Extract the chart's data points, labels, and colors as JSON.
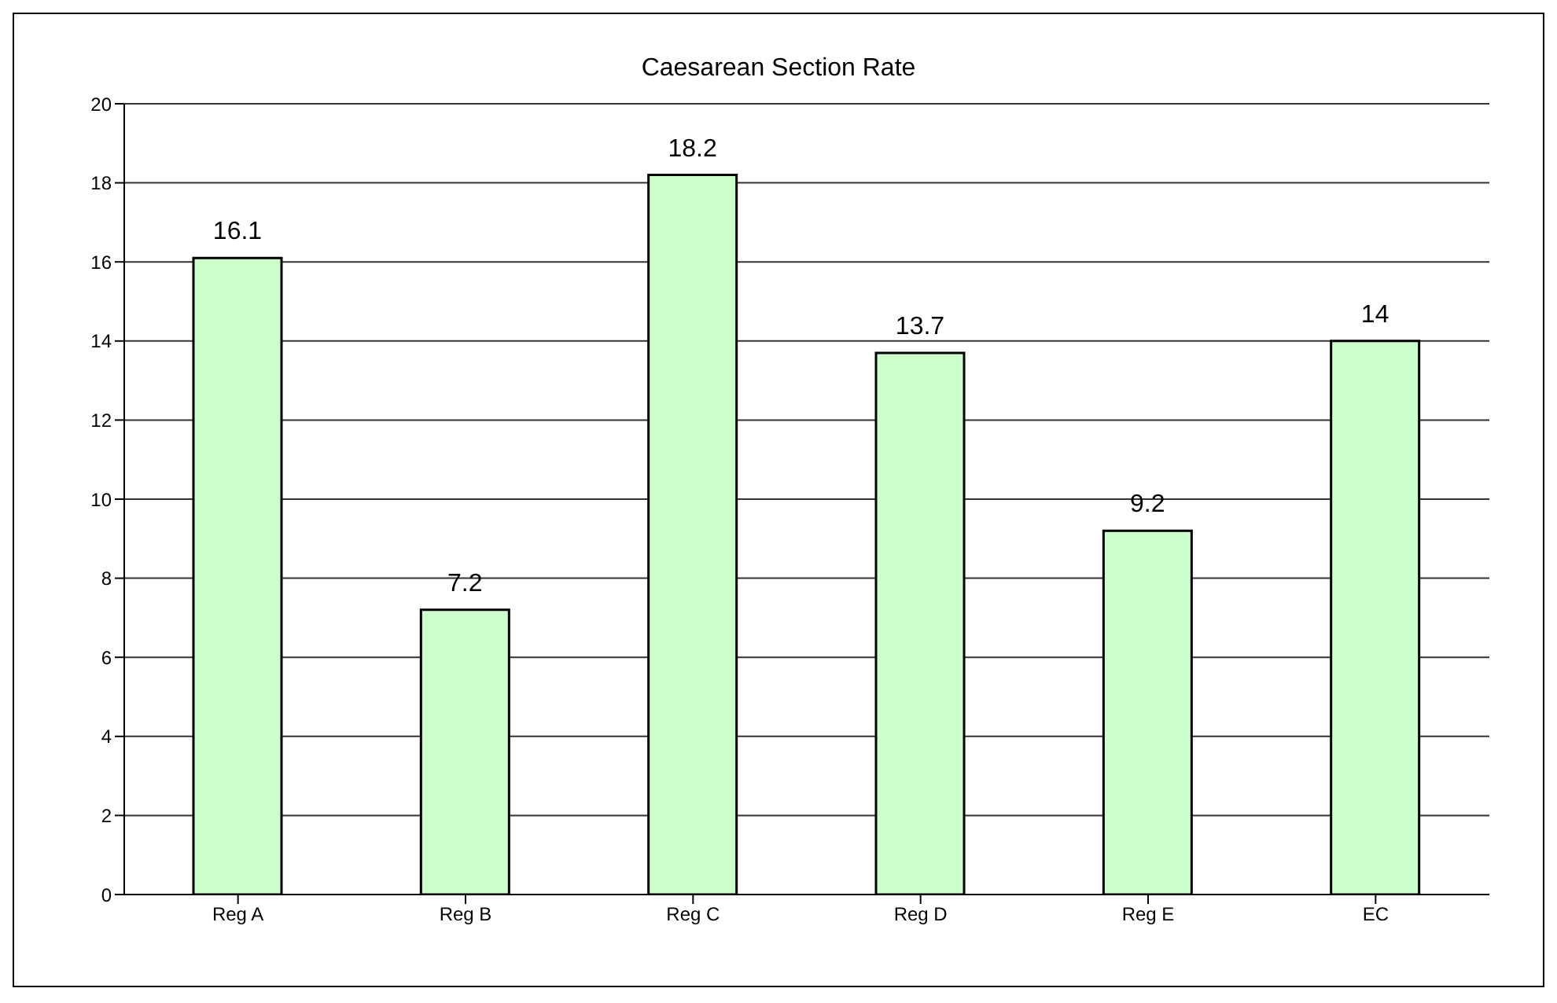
{
  "chart_data": {
    "type": "bar",
    "title": "Caesarean Section Rate",
    "categories": [
      "Reg A",
      "Reg B",
      "Reg C",
      "Reg D",
      "Reg E",
      "EC"
    ],
    "values": [
      16.1,
      7.2,
      18.2,
      13.7,
      9.2,
      14
    ],
    "color": "#ccffcc",
    "ylim": [
      0,
      20
    ],
    "yticks": [
      0,
      2,
      4,
      6,
      8,
      10,
      12,
      14,
      16,
      18,
      20
    ],
    "grid": "y",
    "data_labels": true
  }
}
